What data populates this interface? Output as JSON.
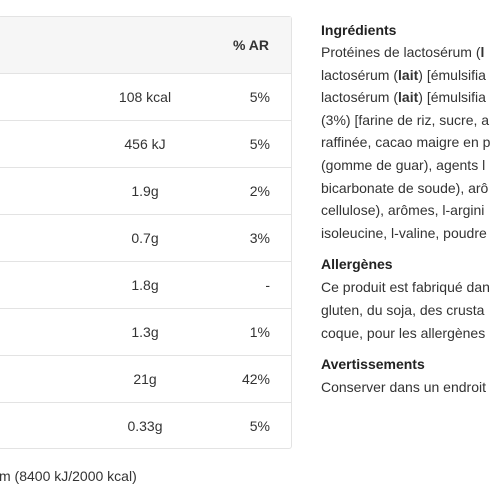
{
  "nutrition": {
    "ar_header": "% AR",
    "rows": [
      {
        "value": "108 kcal",
        "ar": "5%"
      },
      {
        "value": "456 kJ",
        "ar": "5%"
      },
      {
        "value": "1.9g",
        "ar": "2%"
      },
      {
        "value": "0.7g",
        "ar": "3%"
      },
      {
        "value": "1.8g",
        "ar": "-"
      },
      {
        "value": "1.3g",
        "ar": "1%"
      },
      {
        "value": "21g",
        "ar": "42%"
      },
      {
        "value": "0.33g",
        "ar": "5%"
      }
    ],
    "footnote": "m (8400 kJ/2000 kcal)"
  },
  "ingredients": {
    "title": "Ingrédients",
    "lines": [
      {
        "pre": "Protéines de lactosérum (",
        "bold": "l",
        "post": ""
      },
      {
        "pre": "lactosérum (",
        "bold": "lait",
        "post": ") [émulsifia"
      },
      {
        "pre": "lactosérum (",
        "bold": "lait",
        "post": ") [émulsifia"
      },
      {
        "pre": "(3%) [farine de riz, sucre, a",
        "bold": "",
        "post": ""
      },
      {
        "pre": "raffinée, cacao maigre en p",
        "bold": "",
        "post": ""
      },
      {
        "pre": "(gomme de guar), agents l",
        "bold": "",
        "post": ""
      },
      {
        "pre": "bicarbonate de soude), arô",
        "bold": "",
        "post": ""
      },
      {
        "pre": "cellulose), arômes, l-argini",
        "bold": "",
        "post": ""
      },
      {
        "pre": "isoleucine, l-valine, poudre",
        "bold": "",
        "post": ""
      }
    ]
  },
  "allergens": {
    "title": "Allergènes",
    "lines": [
      "Ce produit est fabriqué dan",
      "gluten, du soja, des crusta",
      "coque, pour les allergènes"
    ]
  },
  "warnings": {
    "title": "Avertissements",
    "lines": [
      "Conserver dans un endroit"
    ]
  }
}
